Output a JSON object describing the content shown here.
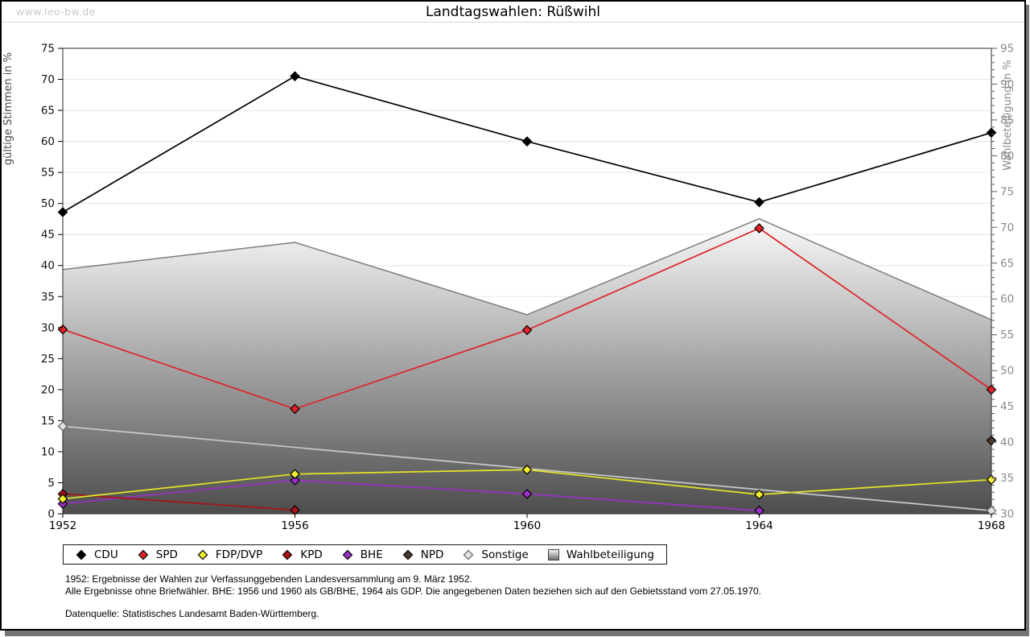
{
  "watermark": "www.leo-bw.de",
  "chart_data": {
    "type": "line",
    "title": "Landtagswahlen: Rüßwihl",
    "x": [
      "1952",
      "1956",
      "1960",
      "1964",
      "1968"
    ],
    "y_left": {
      "label": "gültige Stimmen in %",
      "min": 0,
      "max": 75,
      "step": 5
    },
    "y_right": {
      "label": "Wahlbeteiligung in %",
      "min": 30,
      "max": 95,
      "step": 5
    },
    "grid": true,
    "legend_position": "bottom",
    "series": [
      {
        "name": "CDU",
        "axis": "left",
        "color": "#000000",
        "values": [
          48.6,
          70.5,
          60.0,
          50.2,
          61.4
        ]
      },
      {
        "name": "SPD",
        "axis": "left",
        "color": "#dd2327",
        "values": [
          29.7,
          16.9,
          29.6,
          46.0,
          20.0
        ]
      },
      {
        "name": "FDP/DVP",
        "axis": "left",
        "color": "#e8e426",
        "marker_fill": "#f5f032",
        "values": [
          2.4,
          6.4,
          7.1,
          3.1,
          5.5
        ]
      },
      {
        "name": "KPD",
        "axis": "left",
        "color": "#aa1216",
        "values": [
          3.2,
          0.6,
          null,
          null,
          null
        ]
      },
      {
        "name": "BHE",
        "axis": "left",
        "color": "#9b30c8",
        "values": [
          1.6,
          5.4,
          3.2,
          0.5,
          null
        ]
      },
      {
        "name": "NPD",
        "axis": "left",
        "color": "#4c372b",
        "values": [
          null,
          null,
          null,
          null,
          11.8
        ]
      },
      {
        "name": "Sonstige",
        "axis": "left",
        "color": "#c9c9c9",
        "marker_fill": "#e3e3e3",
        "marker_stroke": "#5f5f5f",
        "values": [
          14.1,
          null,
          null,
          null,
          0.5
        ]
      }
    ],
    "area_series": {
      "name": "Wahlbeteiligung",
      "axis": "right",
      "values": [
        64.1,
        67.9,
        57.8,
        71.2,
        57.1
      ],
      "border": "#7d7d7d",
      "fill_top": "#fafafa",
      "fill_bottom": "#4d4d4d"
    }
  },
  "footer": {
    "line1": "1952: Ergebnisse der Wahlen zur Verfassunggebenden Landesversammlung am 9. März 1952.",
    "line2": "Alle Ergebnisse ohne Briefwähler. BHE: 1956 und 1960 als GB/BHE, 1964 als GDP. Die angegebenen Daten beziehen sich auf den Gebietsstand vom 27.05.1970.",
    "source": "Datenquelle: Statistisches Landesamt Baden-Württemberg."
  }
}
